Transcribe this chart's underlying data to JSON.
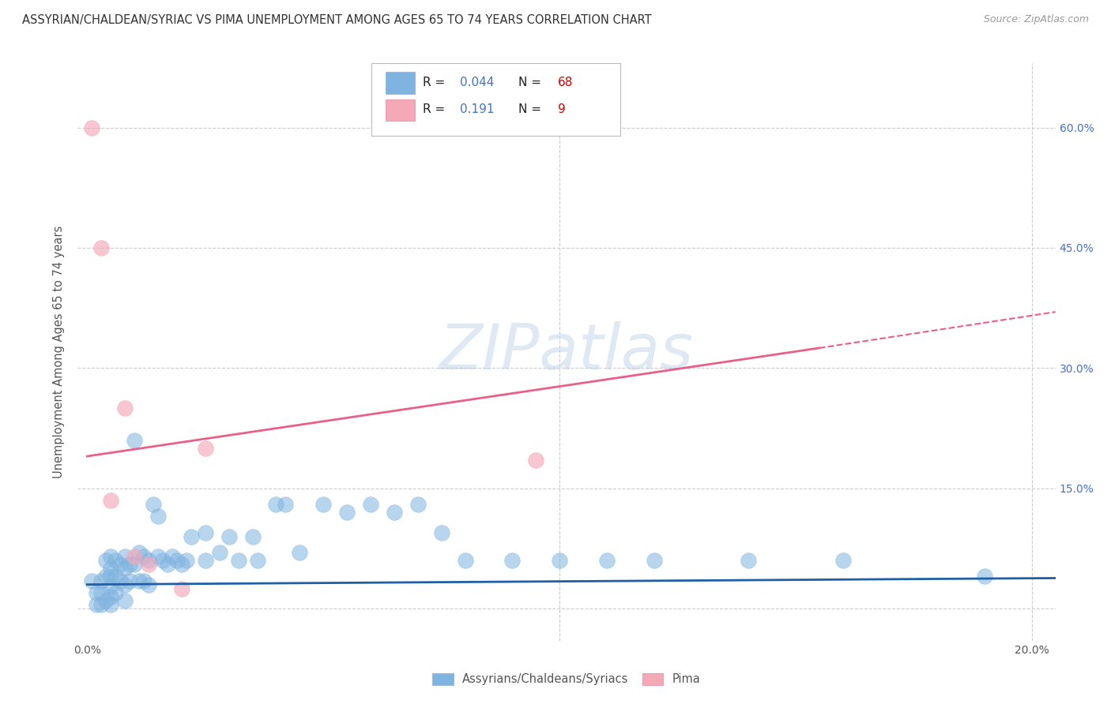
{
  "title": "ASSYRIAN/CHALDEAN/SYRIAC VS PIMA UNEMPLOYMENT AMONG AGES 65 TO 74 YEARS CORRELATION CHART",
  "source": "Source: ZipAtlas.com",
  "ylabel": "Unemployment Among Ages 65 to 74 years",
  "xlim": [
    -0.002,
    0.205
  ],
  "ylim": [
    -0.04,
    0.68
  ],
  "xticks": [
    0.0,
    0.05,
    0.1,
    0.15,
    0.2
  ],
  "xtick_labels": [
    "0.0%",
    "",
    "",
    "",
    "20.0%"
  ],
  "yticks": [
    0.0,
    0.15,
    0.3,
    0.45,
    0.6
  ],
  "ytick_labels_right": [
    "",
    "15.0%",
    "30.0%",
    "45.0%",
    "60.0%"
  ],
  "background_color": "#ffffff",
  "legend_R1": "0.044",
  "legend_N1": "68",
  "legend_R2": "0.191",
  "legend_N2": "9",
  "blue_color": "#7fb3e0",
  "pink_color": "#f4a8b8",
  "blue_line_color": "#1f5fa6",
  "pink_line_color": "#e8608a",
  "grid_color": "#cccccc",
  "blue_line_x0": 0.0,
  "blue_line_x1": 0.205,
  "blue_line_y0": 0.03,
  "blue_line_y1": 0.038,
  "pink_line_solid_x0": 0.0,
  "pink_line_solid_x1": 0.155,
  "pink_line_solid_y0": 0.19,
  "pink_line_solid_y1": 0.325,
  "pink_line_dashed_x0": 0.155,
  "pink_line_dashed_x1": 0.205,
  "pink_line_dashed_y0": 0.325,
  "pink_line_dashed_y1": 0.37,
  "blue_scatter_x": [
    0.001,
    0.002,
    0.002,
    0.003,
    0.003,
    0.003,
    0.004,
    0.004,
    0.004,
    0.005,
    0.005,
    0.005,
    0.005,
    0.005,
    0.005,
    0.006,
    0.006,
    0.006,
    0.007,
    0.007,
    0.008,
    0.008,
    0.008,
    0.008,
    0.009,
    0.009,
    0.01,
    0.01,
    0.011,
    0.011,
    0.012,
    0.012,
    0.013,
    0.013,
    0.014,
    0.015,
    0.015,
    0.016,
    0.017,
    0.018,
    0.019,
    0.02,
    0.021,
    0.022,
    0.025,
    0.025,
    0.028,
    0.03,
    0.032,
    0.035,
    0.036,
    0.04,
    0.042,
    0.045,
    0.05,
    0.055,
    0.06,
    0.065,
    0.07,
    0.075,
    0.08,
    0.09,
    0.1,
    0.11,
    0.12,
    0.14,
    0.16,
    0.19
  ],
  "blue_scatter_y": [
    0.035,
    0.02,
    0.005,
    0.035,
    0.02,
    0.005,
    0.06,
    0.04,
    0.01,
    0.065,
    0.05,
    0.04,
    0.028,
    0.015,
    0.005,
    0.06,
    0.04,
    0.02,
    0.055,
    0.035,
    0.065,
    0.05,
    0.03,
    0.01,
    0.055,
    0.035,
    0.21,
    0.055,
    0.07,
    0.035,
    0.065,
    0.035,
    0.06,
    0.03,
    0.13,
    0.115,
    0.065,
    0.06,
    0.055,
    0.065,
    0.06,
    0.055,
    0.06,
    0.09,
    0.095,
    0.06,
    0.07,
    0.09,
    0.06,
    0.09,
    0.06,
    0.13,
    0.13,
    0.07,
    0.13,
    0.12,
    0.13,
    0.12,
    0.13,
    0.095,
    0.06,
    0.06,
    0.06,
    0.06,
    0.06,
    0.06,
    0.06,
    0.04
  ],
  "pink_scatter_x": [
    0.001,
    0.003,
    0.005,
    0.008,
    0.01,
    0.013,
    0.02,
    0.025,
    0.095
  ],
  "pink_scatter_y": [
    0.6,
    0.45,
    0.135,
    0.25,
    0.065,
    0.055,
    0.025,
    0.2,
    0.185
  ]
}
